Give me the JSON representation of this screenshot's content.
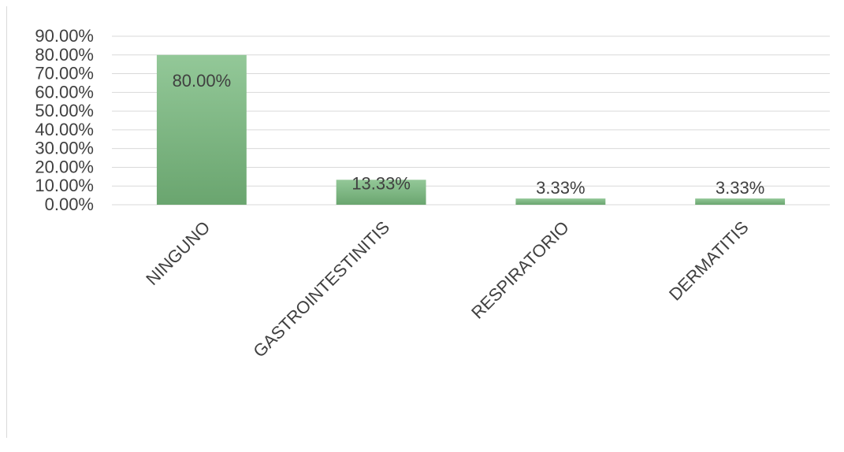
{
  "chart_data": {
    "type": "bar",
    "title": "",
    "xlabel": "",
    "ylabel": "",
    "categories": [
      "NINGUNO",
      "GASTROINTESTINITIS",
      "RESPIRATORIO",
      "DERMATITIS"
    ],
    "values": [
      80.0,
      13.33,
      3.33,
      3.33
    ],
    "data_labels": [
      "80.00%",
      "13.33%",
      "3.33%",
      "3.33%"
    ],
    "y_ticks": [
      0,
      10,
      20,
      30,
      40,
      50,
      60,
      70,
      80,
      90
    ],
    "y_tick_labels": [
      "0.00%",
      "10.00%",
      "20.00%",
      "30.00%",
      "40.00%",
      "50.00%",
      "60.00%",
      "70.00%",
      "80.00%",
      "90.00%"
    ],
    "ylim": [
      0,
      90
    ],
    "grid": true,
    "legend": "none",
    "colors": {
      "bar_light": "#93c898",
      "bar_dark": "#6aa56f",
      "grid": "#d9d9d9",
      "text": "#404040"
    }
  }
}
